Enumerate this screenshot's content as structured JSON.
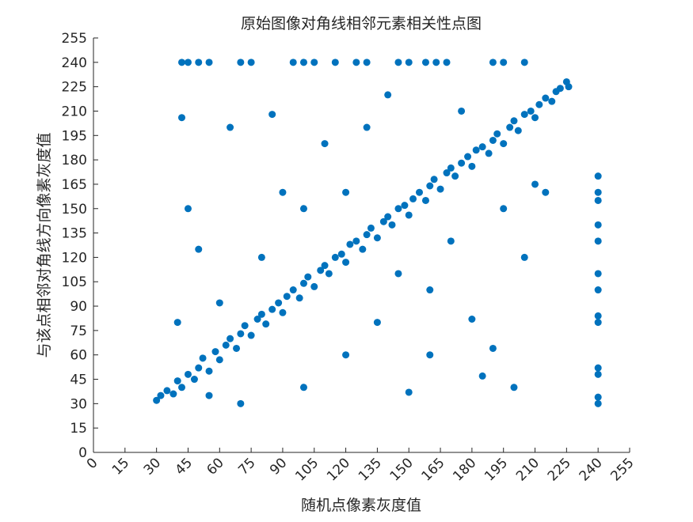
{
  "chart_data": {
    "type": "scatter",
    "title": "原始图像对角线相邻元素相关性点图",
    "x_label": "随机点像素灰度值",
    "y_label": "与该点相邻对角线方向像素灰度值",
    "color": "#0072bd",
    "x": [
      30,
      32,
      35,
      38,
      40,
      42,
      45,
      48,
      50,
      52,
      55,
      58,
      60,
      63,
      65,
      68,
      70,
      72,
      75,
      78,
      80,
      82,
      85,
      88,
      90,
      92,
      95,
      98,
      100,
      102,
      105,
      108,
      110,
      112,
      115,
      118,
      120,
      122,
      125,
      128,
      130,
      132,
      135,
      138,
      140,
      142,
      145,
      148,
      150,
      152,
      155,
      158,
      160,
      162,
      165,
      168,
      170,
      172,
      175,
      178,
      180,
      182,
      185,
      188,
      190,
      192,
      195,
      198,
      200,
      202,
      205,
      208,
      210,
      212,
      215,
      218,
      220,
      222,
      225,
      226,
      42,
      60,
      45,
      50,
      70,
      55,
      90,
      100,
      120,
      130,
      140,
      150,
      160,
      170,
      180,
      190,
      200,
      205,
      210,
      175,
      40,
      65,
      85,
      110,
      135,
      145,
      195,
      215,
      100,
      80,
      120,
      160,
      185,
      42,
      45,
      50,
      55,
      70,
      75,
      95,
      100,
      105,
      115,
      125,
      130,
      145,
      150,
      158,
      163,
      168,
      190,
      195,
      205,
      240,
      240,
      240,
      240,
      240,
      240,
      240,
      240,
      240,
      240,
      240,
      240,
      240
    ],
    "values": [
      32,
      35,
      38,
      36,
      44,
      40,
      48,
      45,
      52,
      58,
      50,
      62,
      57,
      66,
      70,
      64,
      73,
      78,
      72,
      82,
      85,
      79,
      88,
      92,
      86,
      96,
      100,
      95,
      104,
      108,
      102,
      112,
      115,
      110,
      120,
      122,
      117,
      128,
      130,
      125,
      134,
      138,
      132,
      142,
      145,
      140,
      150,
      152,
      146,
      156,
      160,
      155,
      164,
      168,
      162,
      172,
      175,
      170,
      178,
      182,
      176,
      186,
      188,
      184,
      192,
      196,
      190,
      200,
      204,
      198,
      208,
      210,
      206,
      214,
      218,
      216,
      222,
      224,
      228,
      225,
      206,
      92,
      150,
      125,
      30,
      35,
      160,
      40,
      60,
      200,
      220,
      37,
      60,
      130,
      82,
      64,
      40,
      120,
      165,
      210,
      80,
      200,
      208,
      190,
      80,
      110,
      150,
      160,
      150,
      120,
      160,
      100,
      47,
      240,
      240,
      240,
      240,
      240,
      240,
      240,
      240,
      240,
      240,
      240,
      240,
      240,
      240,
      240,
      240,
      240,
      240,
      240,
      240,
      30,
      34,
      48,
      52,
      80,
      84,
      100,
      110,
      130,
      140,
      155,
      160,
      170
    ],
    "xlim": [
      0,
      255
    ],
    "ylim": [
      0,
      255
    ],
    "xticks": [
      0,
      15,
      30,
      45,
      60,
      75,
      90,
      105,
      120,
      135,
      150,
      165,
      180,
      195,
      210,
      225,
      240,
      255
    ],
    "yticks": [
      0,
      15,
      30,
      45,
      60,
      75,
      90,
      105,
      120,
      135,
      150,
      165,
      180,
      195,
      210,
      225,
      240,
      255
    ]
  }
}
